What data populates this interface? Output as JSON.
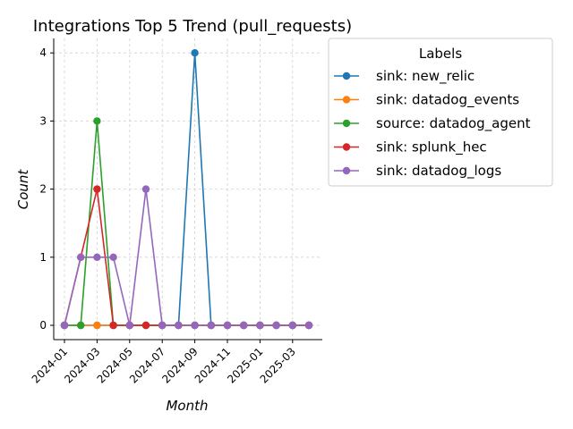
{
  "chart_data": {
    "type": "line",
    "title": "Integrations Top 5 Trend (pull_requests)",
    "xlabel": "Month",
    "ylabel": "Count",
    "x": [
      "2024-01",
      "2024-02",
      "2024-03",
      "2024-04",
      "2024-05",
      "2024-06",
      "2024-07",
      "2024-08",
      "2024-09",
      "2024-10",
      "2024-11",
      "2024-12",
      "2025-01",
      "2025-02",
      "2025-03",
      "2025-04"
    ],
    "xtick_labels": [
      "2024-01",
      "2024-03",
      "2024-05",
      "2024-07",
      "2024-09",
      "2024-11",
      "2025-01",
      "2025-03"
    ],
    "ytick_labels": [
      "0",
      "1",
      "2",
      "3",
      "4"
    ],
    "ylim": [
      0,
      4
    ],
    "grid": true,
    "legend_title": "Labels",
    "legend_placement": "outside-right",
    "series": [
      {
        "name": "sink: new_relic",
        "color": "#1f77b4",
        "values": [
          0,
          0,
          0,
          0,
          0,
          0,
          0,
          0,
          4,
          0,
          0,
          0,
          0,
          0,
          0,
          0
        ]
      },
      {
        "name": "sink: datadog_events",
        "color": "#ff7f0e",
        "values": [
          0,
          0,
          0,
          0,
          0,
          0,
          0,
          0,
          0,
          0,
          0,
          0,
          0,
          0,
          0,
          0
        ]
      },
      {
        "name": "source: datadog_agent",
        "color": "#2ca02c",
        "values": [
          0,
          0,
          3,
          0,
          0,
          0,
          0,
          0,
          0,
          0,
          0,
          0,
          0,
          0,
          0,
          0
        ]
      },
      {
        "name": "sink: splunk_hec",
        "color": "#d62728",
        "values": [
          0,
          1,
          2,
          0,
          0,
          0,
          0,
          0,
          0,
          0,
          0,
          0,
          0,
          0,
          0,
          0
        ]
      },
      {
        "name": "sink: datadog_logs",
        "color": "#9467bd",
        "values": [
          0,
          1,
          1,
          1,
          0,
          2,
          0,
          0,
          0,
          0,
          0,
          0,
          0,
          0,
          0,
          0
        ]
      }
    ]
  }
}
